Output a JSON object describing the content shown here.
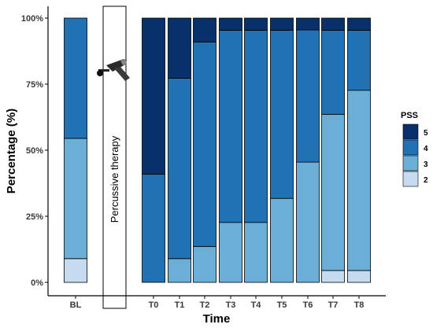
{
  "chart_data": {
    "type": "bar",
    "stacked": true,
    "categories": [
      "BL",
      "T0",
      "T1",
      "T2",
      "T3",
      "T4",
      "T5",
      "T6",
      "T7",
      "T8"
    ],
    "series": [
      {
        "name": "2",
        "color": "#c6dbef",
        "values": [
          9,
          0,
          0,
          0,
          0,
          0,
          0,
          0,
          4.5,
          4.5
        ]
      },
      {
        "name": "3",
        "color": "#6baed6",
        "values": [
          45.5,
          0,
          9,
          13.6,
          22.7,
          22.7,
          31.8,
          45.5,
          59.1,
          68.2
        ]
      },
      {
        "name": "4",
        "color": "#2171b5",
        "values": [
          45.5,
          40.9,
          68.2,
          77.3,
          72.7,
          72.7,
          63.6,
          50,
          31.8,
          22.7
        ]
      },
      {
        "name": "5",
        "color": "#08306b",
        "values": [
          0,
          59.1,
          22.8,
          9.1,
          4.6,
          4.6,
          4.6,
          4.5,
          4.6,
          4.6
        ]
      }
    ],
    "xlabel": "Time",
    "ylabel": "Percentage (%)",
    "ylim": [
      0,
      100
    ],
    "yticks": [
      "0%",
      "25%",
      "50%",
      "75%",
      "100%"
    ],
    "legend": {
      "title": "PSS",
      "order": [
        "5",
        "4",
        "3",
        "2"
      ],
      "placement": "right"
    },
    "annotation": {
      "text": "Percussive therapy",
      "icon": "massage-gun-icon"
    },
    "grid": false
  }
}
